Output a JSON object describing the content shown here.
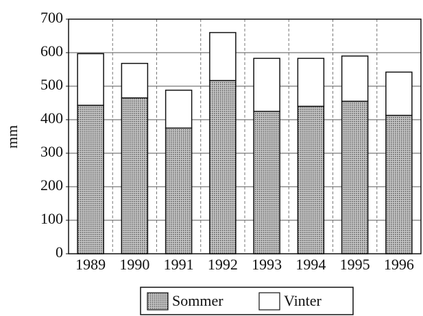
{
  "chart_data": {
    "type": "stacked_bar",
    "categories": [
      "1989",
      "1990",
      "1991",
      "1992",
      "1993",
      "1994",
      "1995",
      "1996"
    ],
    "series": [
      {
        "name": "Sommer",
        "color": "#a8a8a8",
        "values": [
          443,
          465,
          375,
          517,
          425,
          440,
          455,
          413
        ]
      },
      {
        "name": "Vinter",
        "color": "#ffffff",
        "values": [
          154,
          103,
          113,
          143,
          158,
          143,
          135,
          129
        ]
      }
    ],
    "ylabel": "mm",
    "ylim": [
      0,
      700
    ],
    "yticks": [
      0,
      100,
      200,
      300,
      400,
      500,
      600,
      700
    ],
    "grid": true
  }
}
